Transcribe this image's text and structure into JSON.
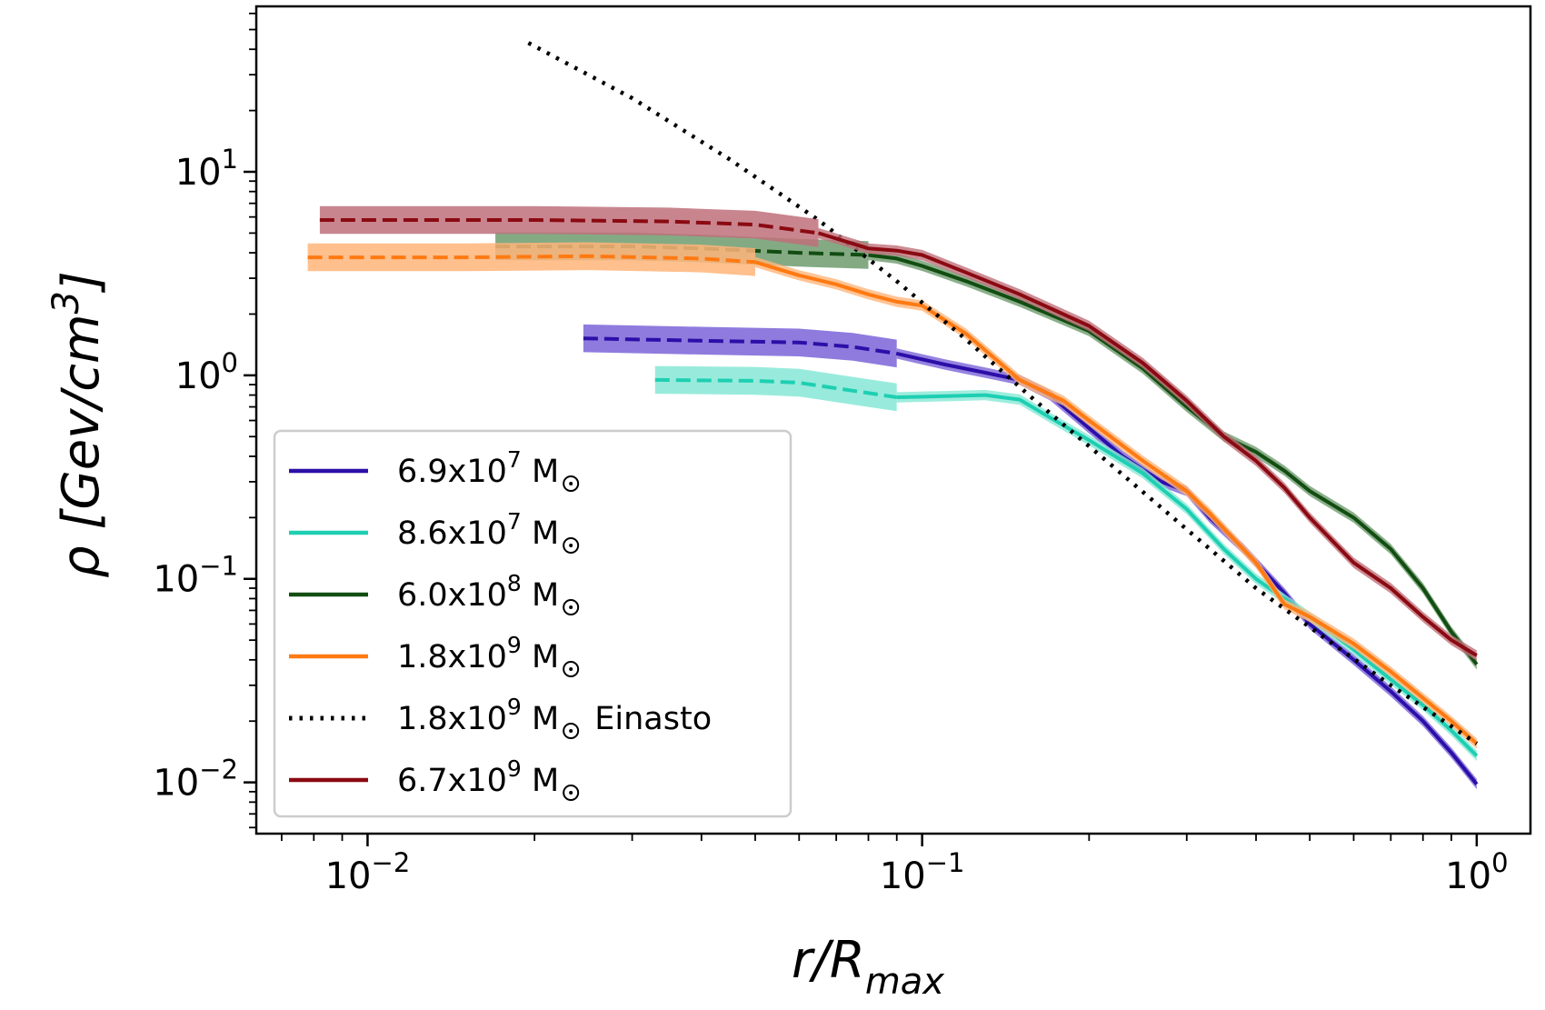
{
  "chart_data": {
    "type": "line",
    "xscale": "log",
    "yscale": "log",
    "xlim": [
      0.0063,
      1.25
    ],
    "ylim": [
      0.0056,
      65
    ],
    "x_ticks": [
      {
        "value": 0.01,
        "base": "10",
        "exp": "−2"
      },
      {
        "value": 0.1,
        "base": "10",
        "exp": "−1"
      },
      {
        "value": 1,
        "base": "10",
        "exp": "0"
      }
    ],
    "y_ticks": [
      {
        "value": 0.01,
        "base": "10",
        "exp": "−2"
      },
      {
        "value": 0.1,
        "base": "10",
        "exp": "−1"
      },
      {
        "value": 1,
        "base": "10",
        "exp": "0"
      },
      {
        "value": 10,
        "base": "10",
        "exp": "1"
      }
    ],
    "xlabel": {
      "main": "r/R",
      "sub": "max"
    },
    "ylabel": {
      "prefix": "ρ [Gev/cm",
      "sup": "3",
      "suffix": "]"
    },
    "legend_position": "lower-left",
    "series": [
      {
        "name": "6.9x10^7 M☉",
        "legend_mant": "6.9x10",
        "legend_exp": "7",
        "legend_unit": "M",
        "legend_suffix": "",
        "color": "#2c0fa8",
        "band_color": "#7b64d8",
        "style": "solid",
        "core_x": [
          0.0245,
          0.04,
          0.06,
          0.075,
          0.09
        ],
        "core_y": [
          1.52,
          1.48,
          1.45,
          1.38,
          1.28
        ],
        "x": [
          0.09,
          0.11,
          0.13,
          0.15,
          0.17,
          0.2,
          0.23,
          0.27,
          0.3,
          0.33,
          0.38,
          0.45,
          0.5,
          0.6,
          0.7,
          0.8,
          0.9,
          1.0
        ],
        "y": [
          1.28,
          1.13,
          1.03,
          0.95,
          0.8,
          0.55,
          0.4,
          0.3,
          0.27,
          0.2,
          0.14,
          0.085,
          0.06,
          0.04,
          0.028,
          0.02,
          0.014,
          0.0098
        ]
      },
      {
        "name": "8.6x10^7 M☉",
        "legend_mant": "8.6x10",
        "legend_exp": "7",
        "legend_unit": "M",
        "legend_suffix": "",
        "color": "#1ecfb2",
        "band_color": "#86e8d6",
        "style": "solid",
        "core_x": [
          0.033,
          0.05,
          0.06,
          0.075,
          0.09
        ],
        "core_y": [
          0.95,
          0.94,
          0.92,
          0.84,
          0.78
        ],
        "x": [
          0.09,
          0.11,
          0.13,
          0.15,
          0.17,
          0.2,
          0.25,
          0.3,
          0.35,
          0.4,
          0.5,
          0.6,
          0.7,
          0.8,
          0.9,
          1.0
        ],
        "y": [
          0.78,
          0.79,
          0.8,
          0.76,
          0.62,
          0.48,
          0.33,
          0.22,
          0.14,
          0.1,
          0.065,
          0.045,
          0.032,
          0.024,
          0.018,
          0.0135
        ]
      },
      {
        "name": "6.0x10^8 M☉",
        "legend_mant": "6.0x10",
        "legend_exp": "8",
        "legend_unit": "M",
        "legend_suffix": "",
        "color": "#124d12",
        "band_color": "#6e9b6e",
        "style": "solid",
        "core_x": [
          0.017,
          0.03,
          0.04,
          0.06,
          0.08
        ],
        "core_y": [
          4.3,
          4.3,
          4.2,
          4.0,
          3.9
        ],
        "x": [
          0.08,
          0.09,
          0.1,
          0.12,
          0.15,
          0.2,
          0.25,
          0.3,
          0.35,
          0.4,
          0.45,
          0.5,
          0.6,
          0.7,
          0.8,
          0.9,
          1.0
        ],
        "y": [
          3.9,
          3.75,
          3.45,
          2.9,
          2.3,
          1.65,
          1.08,
          0.7,
          0.5,
          0.42,
          0.34,
          0.27,
          0.2,
          0.14,
          0.09,
          0.055,
          0.038
        ]
      },
      {
        "name": "1.8x10^9 M☉",
        "legend_mant": "1.8x10",
        "legend_exp": "9",
        "legend_unit": "M",
        "legend_suffix": "",
        "color": "#ff7a12",
        "band_color": "#ffb57a",
        "style": "solid",
        "core_x": [
          0.0078,
          0.015,
          0.025,
          0.04,
          0.05
        ],
        "core_y": [
          3.8,
          3.8,
          3.85,
          3.75,
          3.6
        ],
        "x": [
          0.05,
          0.06,
          0.07,
          0.08,
          0.09,
          0.1,
          0.12,
          0.15,
          0.18,
          0.2,
          0.25,
          0.3,
          0.33,
          0.4,
          0.45,
          0.5,
          0.6,
          0.7,
          0.8,
          0.9,
          1.0
        ],
        "y": [
          3.6,
          3.1,
          2.8,
          2.5,
          2.3,
          2.2,
          1.6,
          0.95,
          0.75,
          0.6,
          0.38,
          0.27,
          0.21,
          0.12,
          0.075,
          0.065,
          0.048,
          0.035,
          0.026,
          0.02,
          0.0155
        ]
      },
      {
        "name": "1.8x10^9 M☉ Einasto",
        "legend_mant": "1.8x10",
        "legend_exp": "9",
        "legend_unit": "M",
        "legend_suffix": " Einasto",
        "color": "#000000",
        "band_color": "none",
        "style": "dotted",
        "core_x": [],
        "core_y": [],
        "x": [
          0.0195,
          0.03,
          0.045,
          0.065,
          0.09,
          0.12,
          0.16,
          0.22,
          0.3,
          0.4,
          0.55,
          0.7,
          0.85,
          1.0
        ],
        "y": [
          43,
          23,
          11.5,
          5.8,
          2.9,
          1.5,
          0.75,
          0.36,
          0.175,
          0.09,
          0.048,
          0.03,
          0.021,
          0.0155
        ]
      },
      {
        "name": "6.7x10^9 M☉",
        "legend_mant": "6.7x10",
        "legend_exp": "9",
        "legend_unit": "M",
        "legend_suffix": "",
        "color": "#8b0a12",
        "band_color": "#c0707a",
        "style": "solid",
        "core_x": [
          0.0082,
          0.02,
          0.035,
          0.05,
          0.065
        ],
        "core_y": [
          5.8,
          5.8,
          5.7,
          5.5,
          5.0
        ],
        "x": [
          0.065,
          0.08,
          0.09,
          0.1,
          0.12,
          0.15,
          0.2,
          0.25,
          0.3,
          0.35,
          0.4,
          0.45,
          0.5,
          0.6,
          0.7,
          0.8,
          0.9,
          1.0
        ],
        "y": [
          5.0,
          4.2,
          4.1,
          3.9,
          3.2,
          2.5,
          1.75,
          1.15,
          0.75,
          0.5,
          0.38,
          0.28,
          0.2,
          0.12,
          0.09,
          0.065,
          0.05,
          0.042
        ]
      }
    ]
  }
}
